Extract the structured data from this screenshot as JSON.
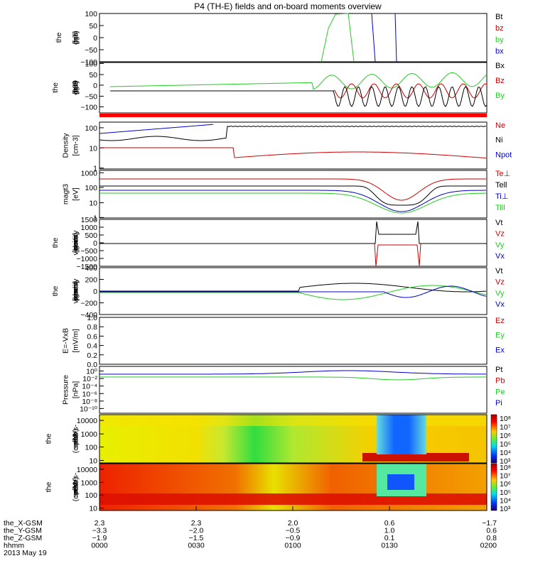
{
  "title": "P4 (TH-E) fields and on-board moments overview",
  "colors": {
    "black": "#000000",
    "red": "#cc0000",
    "green": "#22cc22",
    "blue": "#0000cc"
  },
  "chart_data": [
    {
      "id": "fgs",
      "type": "line",
      "ylabel": [
        "the",
        "fgs",
        "gsm",
        "[nT]"
      ],
      "ylim": [
        -100,
        100
      ],
      "yticks": [
        "100",
        "50",
        "0",
        "−50",
        "−100"
      ],
      "legend": [
        {
          "text": "Bt",
          "color": "#000000"
        },
        {
          "text": "bz",
          "color": "#cc0000"
        },
        {
          "text": "by",
          "color": "#22cc22"
        },
        {
          "text": "bx",
          "color": "#0000cc"
        }
      ]
    },
    {
      "id": "fge",
      "type": "line",
      "ylabel": [
        "the",
        "fge",
        "gsm",
        "-089",
        "[nT]"
      ],
      "ylim": [
        -130,
        100
      ],
      "yticks": [
        "100",
        "50",
        "0",
        "−50",
        "−100"
      ],
      "legend": [
        {
          "text": "Bx",
          "color": "#000000"
        },
        {
          "text": "Bz",
          "color": "#cc0000"
        },
        {
          "text": "By",
          "color": "#22cc22"
        }
      ]
    },
    {
      "id": "density",
      "type": "line",
      "scale": "log",
      "ylabel": [
        "Density",
        "[cm-3]"
      ],
      "ylim": [
        1,
        150
      ],
      "yticks": [
        "100",
        "10",
        "1"
      ],
      "legend": [
        {
          "text": "Ne",
          "color": "#cc0000"
        },
        {
          "text": "Ni",
          "color": "#000000"
        },
        {
          "text": "Npot",
          "color": "#0000cc"
        }
      ]
    },
    {
      "id": "temp",
      "type": "line",
      "scale": "log",
      "ylabel": [
        "magt3",
        "[eV]"
      ],
      "ylim": [
        1,
        1500
      ],
      "yticks": [
        "1000",
        "100",
        "10",
        "1"
      ],
      "legend": [
        {
          "text": "Te⊥",
          "color": "#cc0000"
        },
        {
          "text": "Tell",
          "color": "#000000"
        },
        {
          "text": "Ti⊥",
          "color": "#0000cc"
        },
        {
          "text": "Till",
          "color": "#22cc22"
        }
      ]
    },
    {
      "id": "peim",
      "type": "line",
      "ylabel": [
        "the",
        "peim",
        "velocity",
        "gsm",
        "[km/s]"
      ],
      "ylim": [
        -1500,
        1500
      ],
      "yticks": [
        "1500",
        "1000",
        "500",
        "0",
        "−500",
        "−1000",
        "−1500"
      ],
      "legend": [
        {
          "text": "Vt",
          "color": "#000000"
        },
        {
          "text": "Vz",
          "color": "#cc0000"
        },
        {
          "text": "Vy",
          "color": "#22cc22"
        },
        {
          "text": "Vx",
          "color": "#0000cc"
        }
      ]
    },
    {
      "id": "peem",
      "type": "line",
      "ylabel": [
        "the",
        "peem",
        "velocity",
        "gsm",
        "[km/s]"
      ],
      "ylim": [
        -400,
        400
      ],
      "yticks": [
        "400",
        "200",
        "0",
        "−200",
        "−400"
      ],
      "legend": [
        {
          "text": "Vt",
          "color": "#000000"
        },
        {
          "text": "Vz",
          "color": "#cc0000"
        },
        {
          "text": "Vy",
          "color": "#22cc22"
        },
        {
          "text": "Vx",
          "color": "#0000cc"
        }
      ]
    },
    {
      "id": "efield",
      "type": "line",
      "ylabel": [
        "E=-VxB",
        "[mV/m]"
      ],
      "ylim": [
        0,
        1
      ],
      "yticks": [
        "1.0",
        "0.8",
        "0.6",
        "0.4",
        "0.2",
        "0.0"
      ],
      "legend": [
        {
          "text": "Ez",
          "color": "#cc0000"
        },
        {
          "text": "Ey",
          "color": "#22cc22"
        },
        {
          "text": "Ex",
          "color": "#0000cc"
        }
      ]
    },
    {
      "id": "pressure",
      "type": "line",
      "scale": "log",
      "ylabel": [
        "Pressure",
        "[nPa]"
      ],
      "ylim": [
        1e-10,
        10
      ],
      "yticks": [
        "10⁰",
        "10⁻²",
        "10⁻⁴",
        "10⁻⁶",
        "10⁻⁸",
        "10⁻¹⁰"
      ],
      "legend": [
        {
          "text": "Pt",
          "color": "#000000"
        },
        {
          "text": "Pb",
          "color": "#cc0000"
        },
        {
          "text": "Pe",
          "color": "#22cc22"
        },
        {
          "text": "Pi",
          "color": "#0000cc"
        }
      ]
    },
    {
      "id": "peir",
      "type": "heatmap",
      "scale": "log",
      "ylabel": [
        "the",
        "peir",
        "en",
        "eflux",
        "eV",
        "(cm^2-s-",
        "sr-eV)"
      ],
      "ylim": [
        5,
        30000
      ],
      "yticks": [
        "10000",
        "1000",
        "100",
        "10"
      ],
      "colorbar": [
        "10⁸",
        "10⁷",
        "10⁶",
        "10⁵",
        "10⁴",
        "10³"
      ]
    },
    {
      "id": "peer",
      "type": "heatmap",
      "scale": "log",
      "ylabel": [
        "the",
        "peer",
        "en",
        "eflux",
        "eV",
        "(cm^2-s-",
        "sr-eV)"
      ],
      "ylim": [
        5,
        30000
      ],
      "yticks": [
        "10000",
        "1000",
        "100",
        "10"
      ],
      "colorbar": [
        "10⁸",
        "10⁷",
        "10⁶",
        "10⁵",
        "10⁴",
        "10³"
      ]
    }
  ],
  "time_axis": {
    "rows": [
      {
        "label": "the_X-GSM",
        "values": [
          "2.3",
          "2.3",
          "2.0",
          "0.6",
          "−1.7"
        ]
      },
      {
        "label": "the_Y-GSM",
        "values": [
          "−3.3",
          "−2.0",
          "−0.5",
          "1.0",
          "0.6"
        ]
      },
      {
        "label": "the_Z-GSM",
        "values": [
          "−1.9",
          "−1.5",
          "−0.9",
          "0.1",
          "0.8"
        ]
      },
      {
        "label": "hhmm",
        "values": [
          "0000",
          "0030",
          "0100",
          "0130",
          "0200"
        ]
      }
    ],
    "date": "2013 May 19"
  }
}
